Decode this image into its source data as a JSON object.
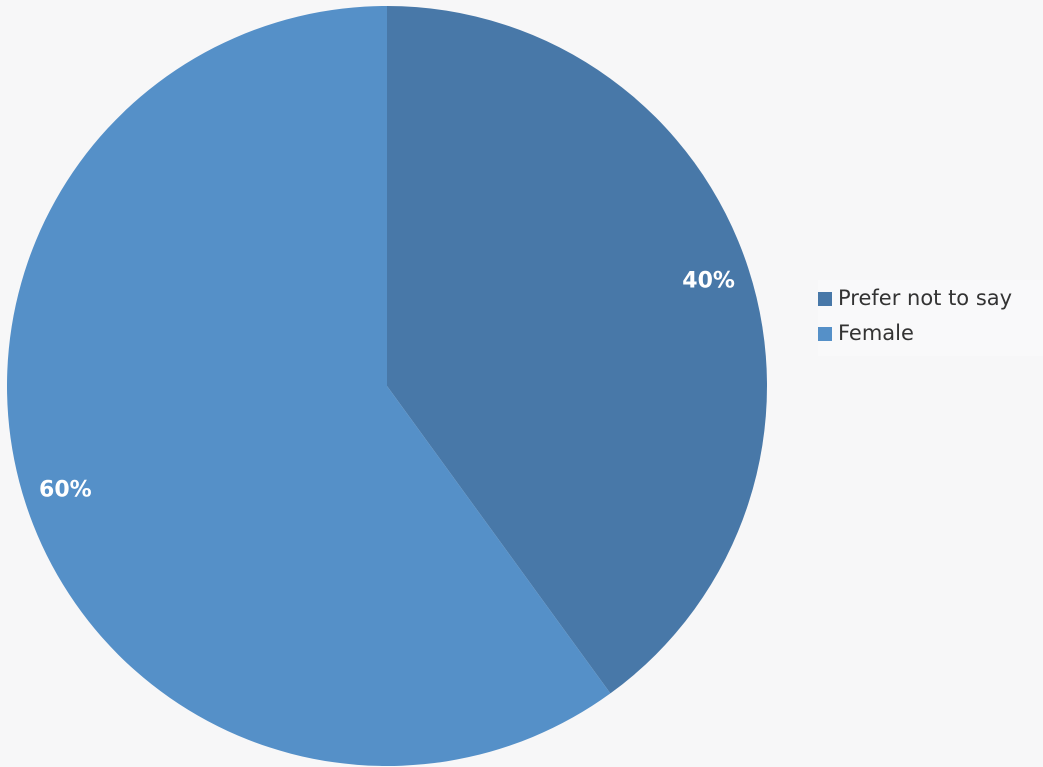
{
  "chart_data": {
    "type": "pie",
    "categories": [
      "Prefer not to say",
      "Female"
    ],
    "values": [
      40,
      60
    ],
    "value_labels": [
      "40%",
      "60%"
    ],
    "colors": [
      "#4878a8",
      "#5590c8"
    ],
    "legend": "right"
  }
}
